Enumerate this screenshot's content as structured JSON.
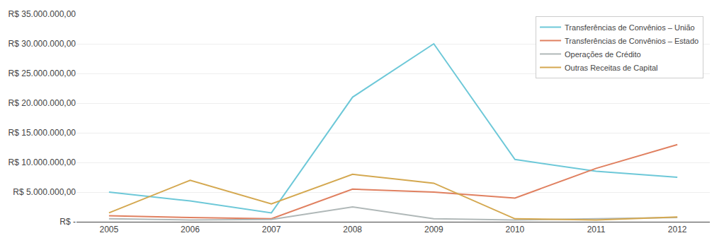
{
  "chart_data": {
    "type": "line",
    "x": [
      2005,
      2006,
      2007,
      2008,
      2009,
      2010,
      2011,
      2012
    ],
    "series": [
      {
        "name": "Transferências de Convênios – União",
        "color": "#6DC8D8",
        "values": [
          5000000,
          3500000,
          1500000,
          21000000,
          30000000,
          10500000,
          8500000,
          7500000
        ]
      },
      {
        "name": "Transferências de Convênios – Estado",
        "color": "#E08060",
        "values": [
          1000000,
          700000,
          500000,
          5500000,
          5000000,
          4000000,
          9000000,
          13000000
        ]
      },
      {
        "name": "Operações de Crédito",
        "color": "#B0B8B8",
        "values": [
          500000,
          300000,
          400000,
          2500000,
          500000,
          300000,
          500000,
          700000
        ]
      },
      {
        "name": "Outras Receitas de Capital",
        "color": "#D4A850",
        "values": [
          1500000,
          7000000,
          3000000,
          8000000,
          6500000,
          500000,
          300000,
          800000
        ]
      }
    ],
    "xlim": [
      2004.6,
      2012.4
    ],
    "xticks": [
      2005,
      2006,
      2007,
      2008,
      2009,
      2010,
      2011,
      2012
    ],
    "ylim": [
      0,
      35000000
    ],
    "yticks": [
      {
        "value": 0,
        "label": "R$ -"
      },
      {
        "value": 5000000,
        "label": "R$ 5.000.000,00"
      },
      {
        "value": 10000000,
        "label": "R$ 10.000.000,00"
      },
      {
        "value": 15000000,
        "label": "R$ 15.000.000,00"
      },
      {
        "value": 20000000,
        "label": "R$ 20.000.000,00"
      },
      {
        "value": 25000000,
        "label": "R$ 25.000.000,00"
      },
      {
        "value": 30000000,
        "label": "R$ 30.000.000,00"
      },
      {
        "value": 35000000,
        "label": "R$ 35.000.000,00"
      }
    ],
    "grid": "y",
    "legend": "upper right"
  }
}
